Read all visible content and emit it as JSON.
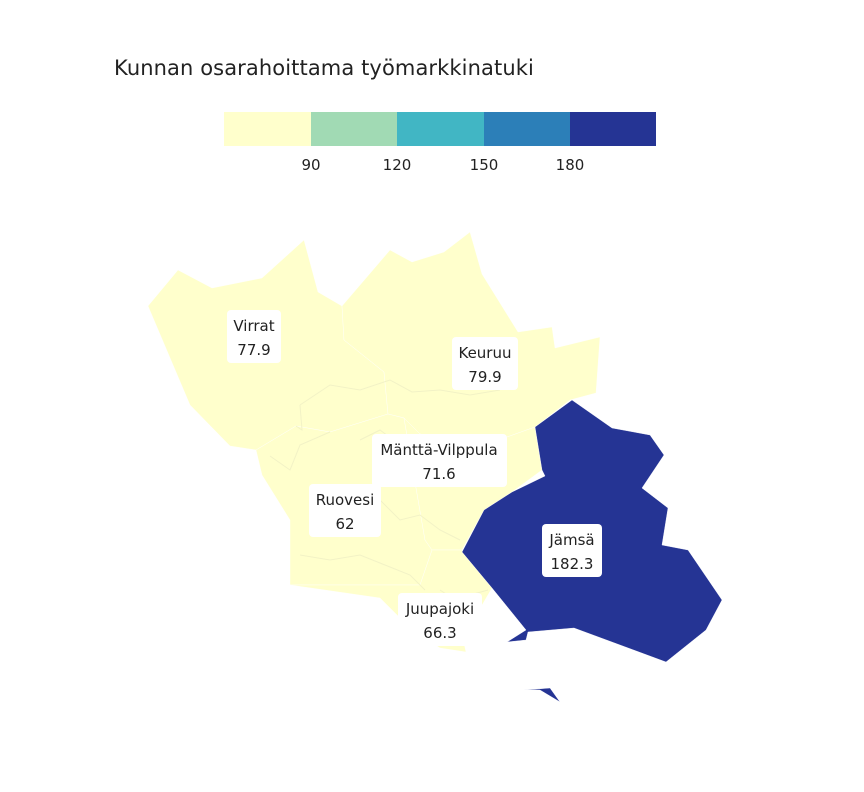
{
  "title": "Kunnan osarahoittama työmarkkinatuki",
  "legend": {
    "breaks": [
      90,
      120,
      150,
      180
    ],
    "colors": [
      "#ffffcc",
      "#a1dab4",
      "#41b6c4",
      "#2c7fb8",
      "#253494"
    ]
  },
  "regions": [
    {
      "key": "virrat",
      "name": "Virrat",
      "value": "77.9"
    },
    {
      "key": "keuruu",
      "name": "Keuruu",
      "value": "79.9"
    },
    {
      "key": "mantta",
      "name": "Mänttä-Vilppula",
      "value": "71.6"
    },
    {
      "key": "ruovesi",
      "name": "Ruovesi",
      "value": "62"
    },
    {
      "key": "juupajoki",
      "name": "Juupajoki",
      "value": "66.3"
    },
    {
      "key": "jamsa",
      "name": "Jämsä",
      "value": "182.3"
    }
  ]
}
